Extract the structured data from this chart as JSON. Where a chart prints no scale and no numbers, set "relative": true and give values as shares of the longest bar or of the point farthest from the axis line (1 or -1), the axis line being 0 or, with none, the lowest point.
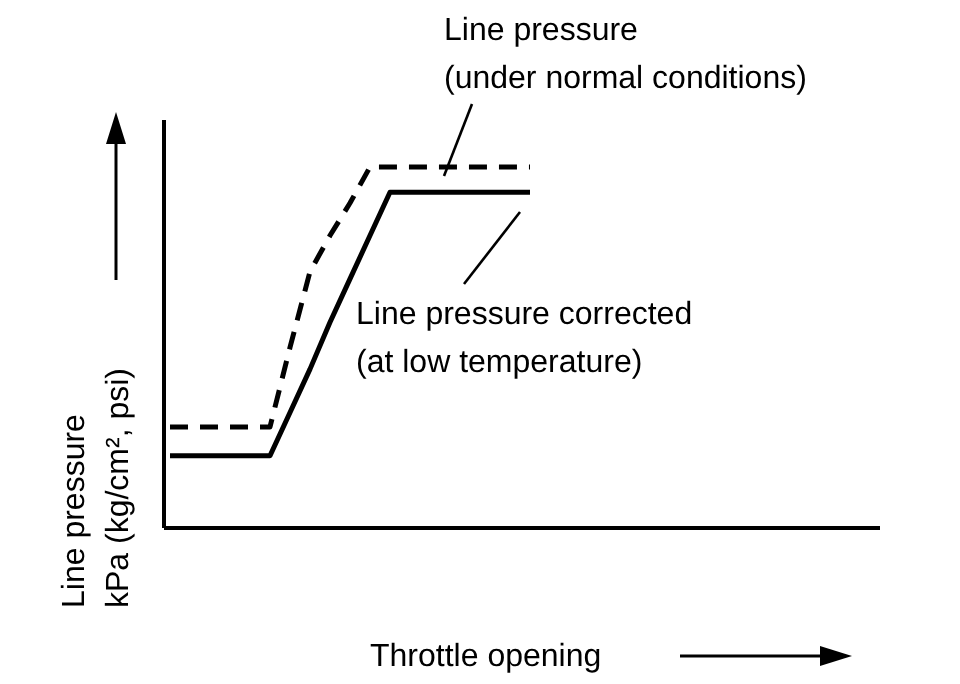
{
  "chart_data": {
    "type": "line",
    "relative": true,
    "xlabel": "Throttle opening",
    "ylabel": "Line pressure\nkPa (kg/cm², psi)",
    "categories": [
      null,
      null,
      null,
      null,
      null,
      null,
      null,
      null,
      null,
      null,
      null,
      null,
      null,
      null,
      null,
      null,
      null,
      null,
      null,
      null,
      null,
      null,
      null,
      null,
      null,
      null,
      null,
      null,
      null,
      null,
      null,
      null,
      null,
      null,
      null,
      null
    ],
    "marker": "none",
    "series": [
      {
        "name": "Line pressure\n(under normal conditions)",
        "color": "#000000",
        "line_style": "dashed",
        "values": [
          0.28,
          0.28,
          0.28,
          0.28,
          0.28,
          0.28,
          0.5,
          0.71,
          0.81,
          0.9,
          1.0,
          1.0,
          1.0,
          1.0,
          1.0,
          1.0,
          1.0,
          1.0,
          1.0,
          null,
          null,
          null,
          null,
          null,
          null,
          null,
          null,
          null,
          null,
          null,
          null,
          null,
          null,
          null,
          null,
          null
        ]
      },
      {
        "name": "Line pressure corrected\n(at low temperature)",
        "color": "#000000",
        "line_style": "solid",
        "values": [
          0.2,
          0.2,
          0.2,
          0.2,
          0.2,
          0.2,
          0.32,
          0.44,
          0.57,
          0.69,
          0.81,
          0.93,
          0.93,
          0.93,
          0.93,
          0.93,
          0.93,
          0.93,
          0.93,
          null,
          null,
          null,
          null,
          null,
          null,
          null,
          null,
          null,
          null,
          null,
          null,
          null,
          null,
          null,
          null,
          null
        ]
      }
    ]
  }
}
